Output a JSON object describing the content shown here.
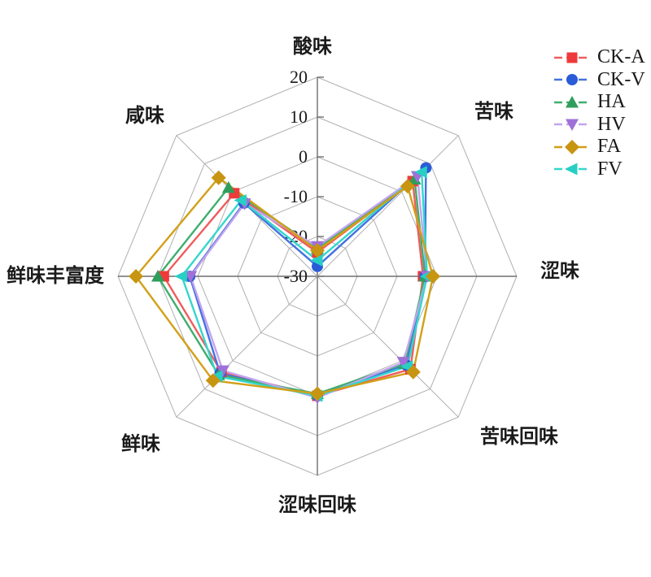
{
  "figure": {
    "background": "#ffffff",
    "grid_light_color": "#b0b0b0",
    "grid_dark_color": "#6e6e6e"
  },
  "chart_data": {
    "type": "radar",
    "title": "",
    "axes": [
      "酸味",
      "苦味",
      "涩味",
      "苦味回味",
      "涩味回味",
      "鲜味",
      "鲜味丰富度",
      "咸味"
    ],
    "radial_axis": {
      "min": -30,
      "max": 20,
      "ticks": [
        20,
        10,
        0,
        -10,
        -20,
        -30
      ],
      "tick_labels": [
        "20",
        "10",
        "0",
        "-10",
        "-20",
        "-30"
      ]
    },
    "grid_rings": [
      -20,
      -10,
      0,
      10,
      20
    ],
    "legend_position": "top-right",
    "series": [
      {
        "name": "CK-A",
        "marker": "square",
        "marker_color": "#ee3a3a",
        "line_color": "#f05c5c",
        "values": [
          -24.0,
          3.8,
          -3.5,
          3.0,
          0.0,
          4.0,
          8.5,
          -0.5
        ]
      },
      {
        "name": "CK-V",
        "marker": "circle",
        "marker_color": "#2a5cd8",
        "line_color": "#4472e0",
        "values": [
          -27.5,
          8.5,
          -3.0,
          1.5,
          0.0,
          4.5,
          2.0,
          -4.0
        ]
      },
      {
        "name": "HA",
        "marker": "triangle-up",
        "marker_color": "#2f9e5a",
        "line_color": "#3fae6e",
        "values": [
          -23.0,
          4.5,
          -3.0,
          1.0,
          -0.5,
          5.0,
          10.0,
          1.5
        ]
      },
      {
        "name": "HV",
        "marker": "triangle-down",
        "marker_color": "#a070d8",
        "line_color": "#c3a4ee",
        "values": [
          -22.5,
          5.5,
          -2.5,
          0.5,
          0.5,
          3.5,
          1.8,
          -4.2
        ]
      },
      {
        "name": "FA",
        "marker": "diamond",
        "marker_color": "#c79512",
        "line_color": "#d2a017",
        "values": [
          -23.5,
          2.0,
          -1.0,
          4.0,
          -0.5,
          7.0,
          15.5,
          5.0
        ]
      },
      {
        "name": "FV",
        "marker": "triangle-left",
        "marker_color": "#27cfc4",
        "line_color": "#35d6cc",
        "values": [
          -26.0,
          7.0,
          -2.5,
          2.0,
          0.0,
          5.5,
          4.0,
          -3.0
        ]
      }
    ],
    "draw_order": [
      "CK-A",
      "CK-V",
      "HA",
      "HV",
      "FV",
      "FA"
    ]
  }
}
